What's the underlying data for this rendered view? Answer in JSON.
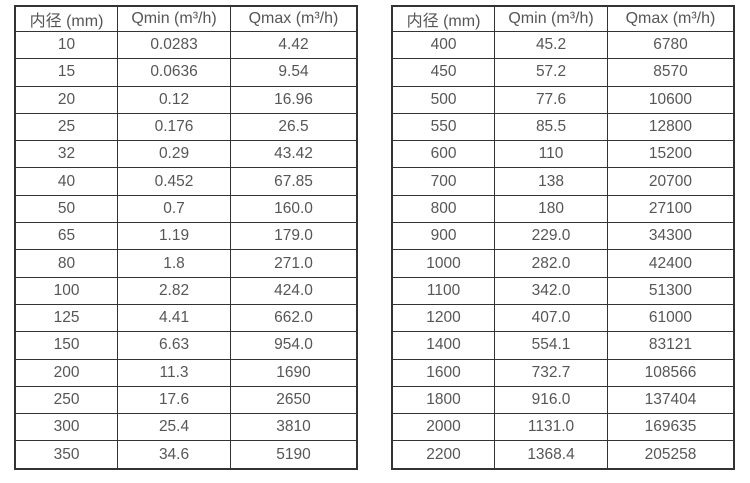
{
  "page": {
    "background": "#ffffff"
  },
  "colors": {
    "border": "#333333",
    "text": "#565656"
  },
  "tables": [
    {
      "name": "small-diameter-flow-table",
      "headers": [
        "内径 (mm)",
        "Qmin (m³/h)",
        "Qmax (m³/h)"
      ],
      "rows": [
        [
          "10",
          "0.0283",
          "4.42"
        ],
        [
          "15",
          "0.0636",
          "9.54"
        ],
        [
          "20",
          "0.12",
          "16.96"
        ],
        [
          "25",
          "0.176",
          "26.5"
        ],
        [
          "32",
          "0.29",
          "43.42"
        ],
        [
          "40",
          "0.452",
          "67.85"
        ],
        [
          "50",
          "0.7",
          "160.0"
        ],
        [
          "65",
          "1.19",
          "179.0"
        ],
        [
          "80",
          "1.8",
          "271.0"
        ],
        [
          "100",
          "2.82",
          "424.0"
        ],
        [
          "125",
          "4.41",
          "662.0"
        ],
        [
          "150",
          "6.63",
          "954.0"
        ],
        [
          "200",
          "11.3",
          "1690"
        ],
        [
          "250",
          "17.6",
          "2650"
        ],
        [
          "300",
          "25.4",
          "3810"
        ],
        [
          "350",
          "34.6",
          "5190"
        ]
      ]
    },
    {
      "name": "large-diameter-flow-table",
      "headers": [
        "内径 (mm)",
        "Qmin (m³/h)",
        "Qmax (m³/h)"
      ],
      "rows": [
        [
          "400",
          "45.2",
          "6780"
        ],
        [
          "450",
          "57.2",
          "8570"
        ],
        [
          "500",
          "77.6",
          "10600"
        ],
        [
          "550",
          "85.5",
          "12800"
        ],
        [
          "600",
          "110",
          "15200"
        ],
        [
          "700",
          "138",
          "20700"
        ],
        [
          "800",
          "180",
          "27100"
        ],
        [
          "900",
          "229.0",
          "34300"
        ],
        [
          "1000",
          "282.0",
          "42400"
        ],
        [
          "1100",
          "342.0",
          "51300"
        ],
        [
          "1200",
          "407.0",
          "61000"
        ],
        [
          "1400",
          "554.1",
          "83121"
        ],
        [
          "1600",
          "732.7",
          "108566"
        ],
        [
          "1800",
          "916.0",
          "137404"
        ],
        [
          "2000",
          "1131.0",
          "169635"
        ],
        [
          "2200",
          "1368.4",
          "205258"
        ]
      ]
    }
  ]
}
